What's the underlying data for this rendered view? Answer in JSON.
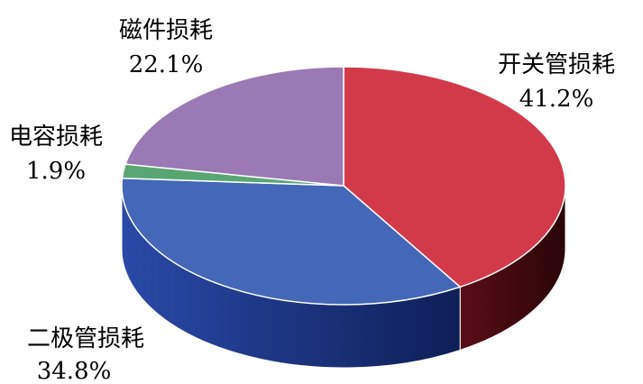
{
  "chart_data": {
    "type": "pie",
    "style": "3d-exploded-depth",
    "title": "",
    "slices": [
      {
        "label": "开关管损耗",
        "value": 41.2,
        "value_label": "41.2%",
        "color": "#d23a4a",
        "side_color": "#4a0a10"
      },
      {
        "label": "二极管损耗",
        "value": 34.8,
        "value_label": "34.8%",
        "color": "#4467b8",
        "side_color": "#1a2f7a"
      },
      {
        "label": "电容损耗",
        "value": 1.9,
        "value_label": "1.9%",
        "color": "#5aa673",
        "side_color": "#2e6b40"
      },
      {
        "label": "磁件损耗",
        "value": 22.1,
        "value_label": "22.1%",
        "color": "#9a79b5",
        "side_color": "#5c3f78"
      }
    ]
  }
}
